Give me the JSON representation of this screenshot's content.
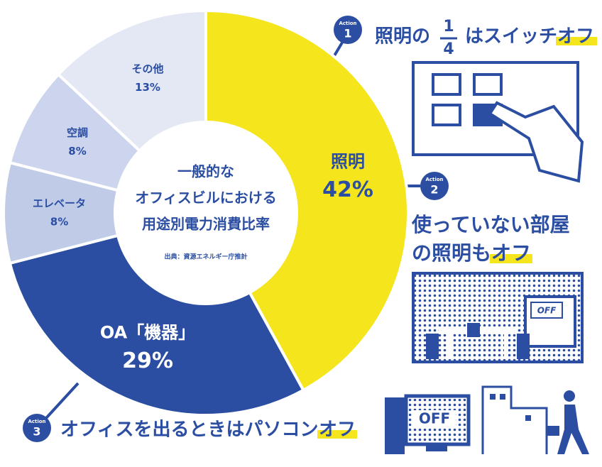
{
  "chart_data": {
    "type": "pie",
    "donut": true,
    "categories": [
      "照明",
      "OA「機器」",
      "エレベータ",
      "空調",
      "その他"
    ],
    "values": [
      42,
      29,
      8,
      8,
      13
    ],
    "value_labels": [
      "42%",
      "29%",
      "8%",
      "8%",
      "13%"
    ],
    "colors": [
      "#f4e51c",
      "#2b4ea2",
      "#bfcbe7",
      "#ccd5ed",
      "#e3e8f4"
    ],
    "center_text": [
      "一般的な",
      "オフィスビルにおける",
      "用途別電力消費比率"
    ],
    "source": "出典：資源エネルギー庁推計"
  },
  "actions": [
    {
      "badge": "Action",
      "number": "1",
      "text": "照明の",
      "fraction": {
        "numerator": "1",
        "denominator": "4"
      },
      "text_after": "はスイッチ",
      "highlight": "オフ"
    },
    {
      "badge": "Action",
      "number": "2",
      "lines": [
        "使っていない部屋",
        "の照明も"
      ],
      "highlight": "オフ"
    },
    {
      "badge": "Action",
      "number": "3",
      "text": "オフィスを出るときはパソコン",
      "highlight": "オフ"
    }
  ],
  "illustrations": {
    "room_sign": "OFF",
    "screen": "OFF"
  }
}
